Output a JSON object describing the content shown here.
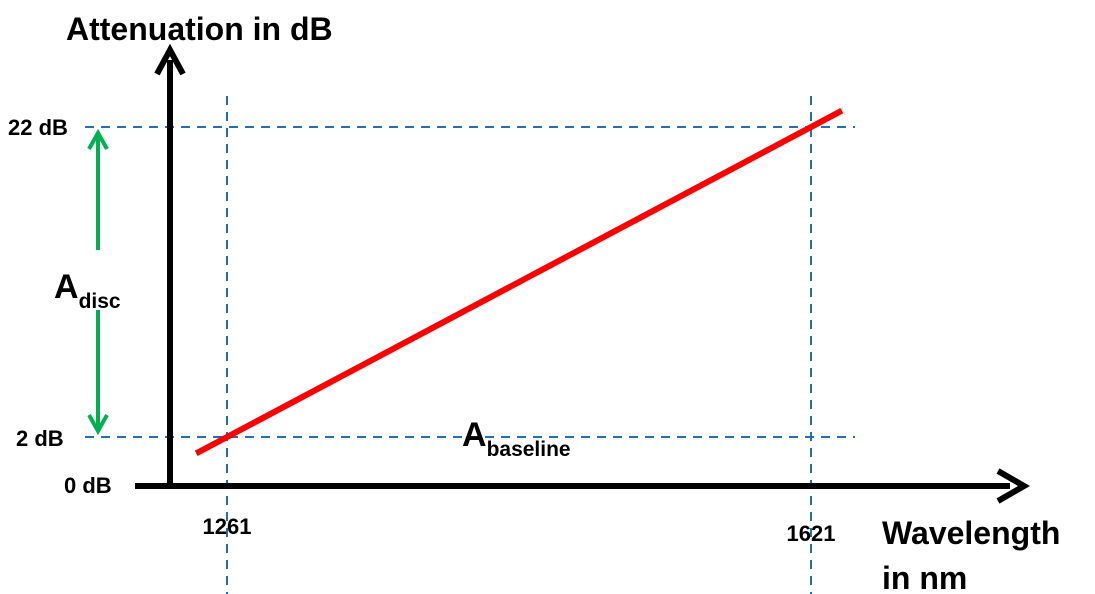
{
  "chart_data": {
    "type": "line",
    "ylabel": "Attenuation in dB",
    "xlabel_lines": [
      "Wavelength",
      "in nm"
    ],
    "y_ticks": [
      {
        "label": "22 dB",
        "value": 22
      },
      {
        "label": "2 dB",
        "value": 2
      },
      {
        "label": "0 dB",
        "value": 0
      }
    ],
    "x_ticks": [
      {
        "label": "1261",
        "value": 1261
      },
      {
        "label": "1621",
        "value": 1621
      }
    ],
    "series": [
      {
        "color": "#ff0000",
        "points": [
          [
            1261,
            2
          ],
          [
            1621,
            22
          ]
        ]
      }
    ],
    "guide_color": "#1f6fbf",
    "axis_color": "#000000",
    "annotations": {
      "disc": {
        "main": "A",
        "sub": "disc",
        "from": 2,
        "to": 22,
        "color": "#00b050"
      },
      "baseline": {
        "main": "A",
        "sub": "baseline"
      }
    }
  }
}
